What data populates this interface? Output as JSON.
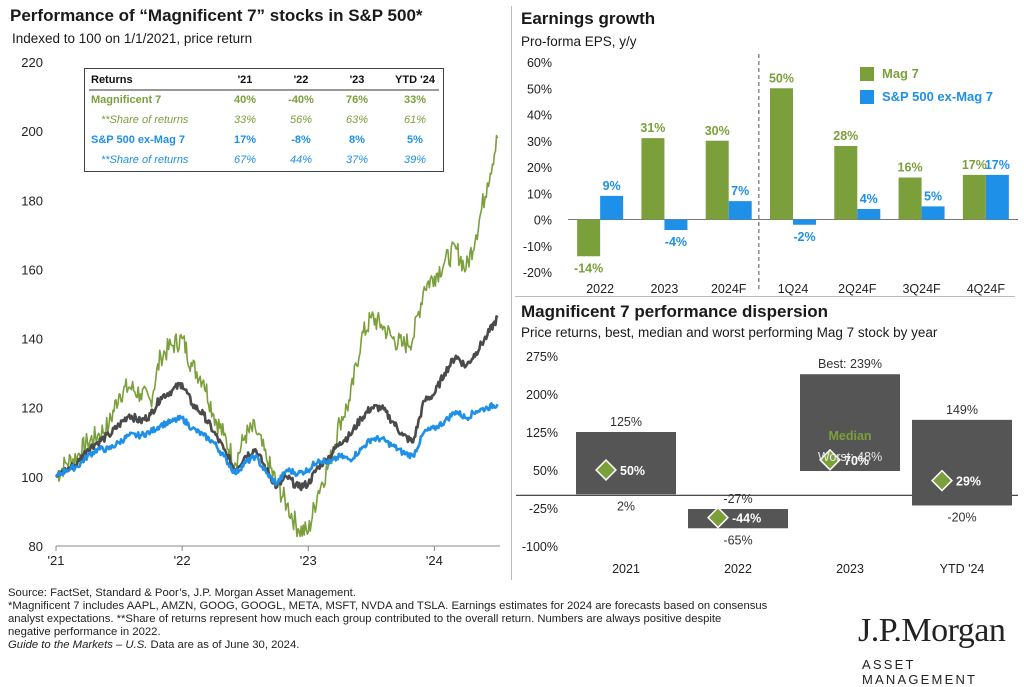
{
  "colors": {
    "mag7": "#7ba03b",
    "sp_ex": "#1e90e8",
    "sp500": "#4a4a4a",
    "dispersion_bar": "#555555",
    "diamond": "#7ba03b"
  },
  "left_panel": {
    "title": "Performance of “Magnificent 7” stocks in S&P 500*",
    "subtitle": "Indexed to 100 on 1/1/2021, price return"
  },
  "returns_table": {
    "headers": [
      "Returns",
      "'21",
      "'22",
      "'23",
      "YTD '24"
    ],
    "rows": [
      {
        "label": "Magnificent 7",
        "values": [
          "40%",
          "-40%",
          "76%",
          "33%"
        ],
        "style": "mag7-bold"
      },
      {
        "label": "**Share of returns",
        "values": [
          "33%",
          "56%",
          "63%",
          "61%"
        ],
        "style": "mag7-italic"
      },
      {
        "label": "S&P 500 ex-Mag 7",
        "values": [
          "17%",
          "-8%",
          "8%",
          "5%"
        ],
        "style": "sp-bold"
      },
      {
        "label": "**Share of returns",
        "values": [
          "67%",
          "44%",
          "37%",
          "39%"
        ],
        "style": "sp-italic"
      }
    ]
  },
  "earnings": {
    "title": "Earnings growth",
    "subtitle": "Pro-forma EPS, y/y",
    "legend": [
      "Mag 7",
      "S&P 500 ex-Mag 7"
    ]
  },
  "dispersion": {
    "title": "Magnificent 7 performance dispersion",
    "subtitle": "Price returns, best, median and worst performing Mag 7 stock by year",
    "annotation_best": "Best: 239%",
    "annotation_median": "Median",
    "annotation_worst": "Worst: 48%"
  },
  "chart_data": [
    {
      "type": "line",
      "ylim": [
        80,
        220
      ],
      "yticks": [
        80,
        100,
        120,
        140,
        160,
        180,
        200,
        220
      ],
      "xticks": [
        "'21",
        "'22",
        "'23",
        "'24"
      ],
      "x_years": [
        2021.0,
        2022.0,
        2023.0,
        2024.0
      ],
      "series": [
        {
          "key": "mag7",
          "points": [
            [
              2021.0,
              100
            ],
            [
              2021.08,
              104
            ],
            [
              2021.17,
              106
            ],
            [
              2021.25,
              110
            ],
            [
              2021.33,
              112
            ],
            [
              2021.42,
              115
            ],
            [
              2021.5,
              124
            ],
            [
              2021.58,
              126
            ],
            [
              2021.67,
              124
            ],
            [
              2021.75,
              122
            ],
            [
              2021.83,
              135
            ],
            [
              2021.92,
              138
            ],
            [
              2022.0,
              140
            ],
            [
              2022.08,
              132
            ],
            [
              2022.17,
              128
            ],
            [
              2022.25,
              118
            ],
            [
              2022.33,
              112
            ],
            [
              2022.42,
              104
            ],
            [
              2022.5,
              112
            ],
            [
              2022.58,
              114
            ],
            [
              2022.67,
              105
            ],
            [
              2022.75,
              98
            ],
            [
              2022.83,
              92
            ],
            [
              2022.92,
              85
            ],
            [
              2023.0,
              84
            ],
            [
              2023.08,
              96
            ],
            [
              2023.17,
              104
            ],
            [
              2023.25,
              116
            ],
            [
              2023.33,
              122
            ],
            [
              2023.42,
              140
            ],
            [
              2023.5,
              146
            ],
            [
              2023.58,
              144
            ],
            [
              2023.67,
              140
            ],
            [
              2023.75,
              138
            ],
            [
              2023.83,
              140
            ],
            [
              2023.92,
              155
            ],
            [
              2024.0,
              158
            ],
            [
              2024.08,
              162
            ],
            [
              2024.17,
              166
            ],
            [
              2024.25,
              160
            ],
            [
              2024.33,
              170
            ],
            [
              2024.42,
              185
            ],
            [
              2024.5,
              198
            ]
          ]
        },
        {
          "key": "sp500",
          "points": [
            [
              2021.0,
              100
            ],
            [
              2021.08,
              102
            ],
            [
              2021.17,
              104
            ],
            [
              2021.25,
              108
            ],
            [
              2021.33,
              110
            ],
            [
              2021.42,
              112
            ],
            [
              2021.5,
              115
            ],
            [
              2021.58,
              118
            ],
            [
              2021.67,
              116
            ],
            [
              2021.75,
              118
            ],
            [
              2021.83,
              123
            ],
            [
              2021.92,
              125
            ],
            [
              2022.0,
              127
            ],
            [
              2022.08,
              121
            ],
            [
              2022.17,
              118
            ],
            [
              2022.25,
              113
            ],
            [
              2022.33,
              108
            ],
            [
              2022.42,
              102
            ],
            [
              2022.5,
              106
            ],
            [
              2022.58,
              108
            ],
            [
              2022.67,
              102
            ],
            [
              2022.75,
              97
            ],
            [
              2022.83,
              100
            ],
            [
              2022.92,
              97
            ],
            [
              2023.0,
              98
            ],
            [
              2023.08,
              103
            ],
            [
              2023.17,
              106
            ],
            [
              2023.25,
              110
            ],
            [
              2023.33,
              112
            ],
            [
              2023.42,
              117
            ],
            [
              2023.5,
              120
            ],
            [
              2023.58,
              120
            ],
            [
              2023.67,
              116
            ],
            [
              2023.75,
              112
            ],
            [
              2023.83,
              110
            ],
            [
              2023.92,
              122
            ],
            [
              2024.0,
              124
            ],
            [
              2024.08,
              130
            ],
            [
              2024.17,
              135
            ],
            [
              2024.25,
              132
            ],
            [
              2024.33,
              136
            ],
            [
              2024.42,
              141
            ],
            [
              2024.5,
              146
            ]
          ]
        },
        {
          "key": "sp_ex",
          "points": [
            [
              2021.0,
              100
            ],
            [
              2021.08,
              102
            ],
            [
              2021.17,
              103
            ],
            [
              2021.25,
              106
            ],
            [
              2021.33,
              108
            ],
            [
              2021.42,
              108
            ],
            [
              2021.5,
              110
            ],
            [
              2021.58,
              112
            ],
            [
              2021.67,
              112
            ],
            [
              2021.75,
              113
            ],
            [
              2021.83,
              115
            ],
            [
              2021.92,
              116
            ],
            [
              2022.0,
              117
            ],
            [
              2022.08,
              114
            ],
            [
              2022.17,
              112
            ],
            [
              2022.25,
              110
            ],
            [
              2022.33,
              106
            ],
            [
              2022.42,
              101
            ],
            [
              2022.5,
              104
            ],
            [
              2022.58,
              106
            ],
            [
              2022.67,
              101
            ],
            [
              2022.75,
              98
            ],
            [
              2022.83,
              102
            ],
            [
              2022.92,
              101
            ],
            [
              2023.0,
              102
            ],
            [
              2023.08,
              105
            ],
            [
              2023.17,
              104
            ],
            [
              2023.25,
              106
            ],
            [
              2023.33,
              105
            ],
            [
              2023.42,
              108
            ],
            [
              2023.5,
              111
            ],
            [
              2023.58,
              111
            ],
            [
              2023.67,
              109
            ],
            [
              2023.75,
              107
            ],
            [
              2023.83,
              106
            ],
            [
              2023.92,
              113
            ],
            [
              2024.0,
              114
            ],
            [
              2024.08,
              116
            ],
            [
              2024.17,
              119
            ],
            [
              2024.25,
              117
            ],
            [
              2024.33,
              119
            ],
            [
              2024.42,
              120
            ],
            [
              2024.5,
              121
            ]
          ]
        }
      ]
    },
    {
      "type": "bar",
      "categories": [
        "2022",
        "2023",
        "2024F",
        "1Q24",
        "2Q24F",
        "3Q24F",
        "4Q24F"
      ],
      "ylim": [
        -20,
        60
      ],
      "yticks": [
        -20,
        -10,
        0,
        10,
        20,
        30,
        40,
        50,
        60
      ],
      "divider_after_index": 2,
      "series": [
        {
          "name": "Mag 7",
          "values": [
            -14,
            31,
            30,
            50,
            28,
            16,
            17
          ],
          "labels": [
            "-14%",
            "31%",
            "30%",
            "50%",
            "28%",
            "16%",
            "17%"
          ]
        },
        {
          "name": "S&P 500 ex-Mag 7",
          "values": [
            9,
            -4,
            7,
            -2,
            4,
            5,
            17
          ],
          "labels": [
            "9%",
            "-4%",
            "7%",
            "-2%",
            "4%",
            "5%",
            "17%"
          ]
        }
      ]
    },
    {
      "type": "bar",
      "categories": [
        "2021",
        "2022",
        "2023",
        "YTD '24"
      ],
      "ylim": [
        -100,
        275
      ],
      "yticks": [
        -100,
        -25,
        50,
        125,
        200,
        275
      ],
      "ytick_labels": [
        "-100%",
        "-25%",
        "50%",
        "125%",
        "200%",
        "275%"
      ],
      "best": [
        125,
        -27,
        239,
        149
      ],
      "worst": [
        2,
        -65,
        48,
        -20
      ],
      "median": [
        50,
        -44,
        70,
        29
      ],
      "best_labels": [
        "125%",
        "-27%",
        "",
        "149%"
      ],
      "worst_labels": [
        "2%",
        "-65%",
        "",
        "-20%"
      ],
      "median_labels": [
        "50%",
        "-44%",
        "70%",
        "29%"
      ]
    }
  ],
  "footer": {
    "lines": [
      "Source: FactSet, Standard & Poor’s, J.P. Morgan Asset Management.",
      "*Magnificent 7 includes AAPL, AMZN, GOOG, GOOGL, META, MSFT, NVDA and TSLA. Earnings estimates for 2024 are forecasts based on consensus",
      "analyst expectations. **Share of returns represent how much each group contributed to the overall return. Numbers are always positive despite",
      "negative performance in 2022."
    ],
    "guide_italic": "Guide to the Markets – U.S.",
    "guide_rest": " Data are as of June 30, 2024."
  },
  "logo": {
    "name": "J.P.Morgan",
    "sub": "ASSET MANAGEMENT"
  }
}
